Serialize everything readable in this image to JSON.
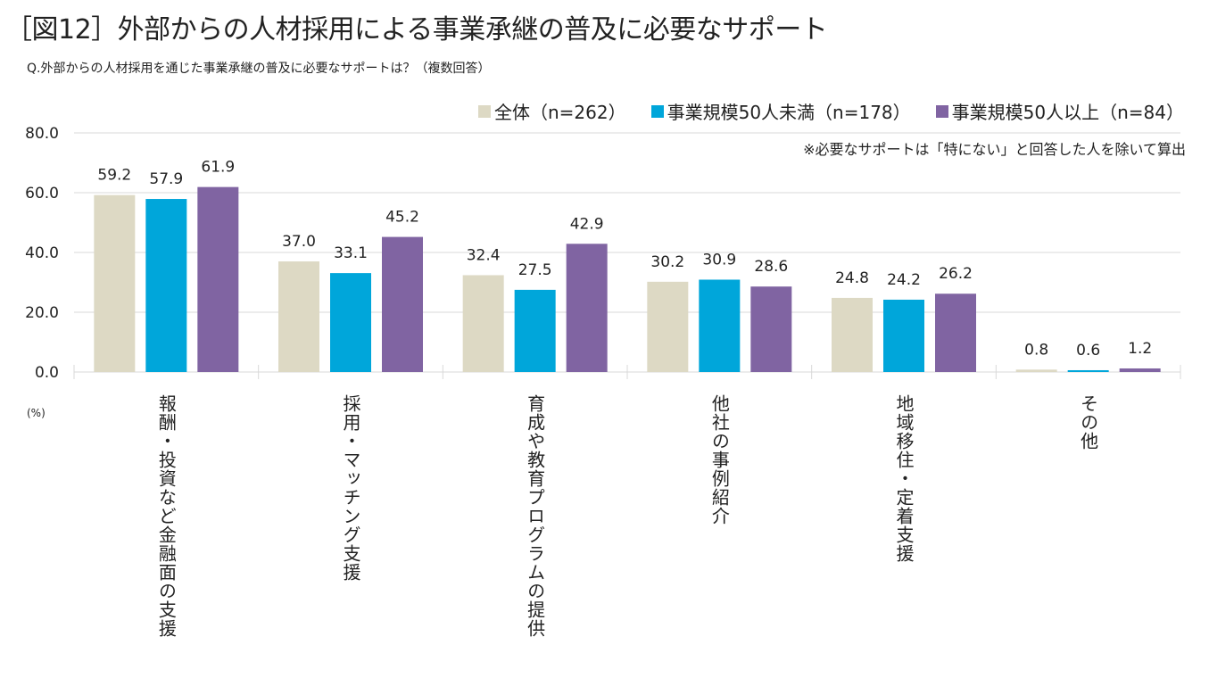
{
  "title": "［図12］外部からの人材採用による事業承継の普及に必要なサポート",
  "subtitle": "Q.外部からの人材採用を通じた事業承継の普及に必要なサポートは？（複数回答）",
  "note": "※必要なサポートは「特にない」と回答した人を除いて算出",
  "unit_label": "(%)",
  "chart_data": {
    "type": "bar",
    "title": "［図12］外部からの人材採用による事業承継の普及に必要なサポート",
    "xlabel": "",
    "ylabel": "(%)",
    "ylim": [
      0,
      80
    ],
    "yticks": [
      "0.0",
      "20.0",
      "40.0",
      "60.0",
      "80.0"
    ],
    "ytick_values": [
      0,
      20,
      40,
      60,
      80
    ],
    "grid": true,
    "legend_position": "top-right",
    "categories": [
      "報酬・投資など金融面の支援",
      "採用・マッチング支援",
      "育成や教育プログラムの提供",
      "他社の事例紹介",
      "地域移住・定着支援",
      "その他"
    ],
    "series": [
      {
        "name": "全体（n=262）",
        "color": "#ddd9c4",
        "values": [
          59.2,
          37.0,
          32.4,
          30.2,
          24.8,
          0.8
        ]
      },
      {
        "name": "事業規模50人未満（n=178）",
        "color": "#00a6da",
        "values": [
          57.9,
          33.1,
          27.5,
          30.9,
          24.2,
          0.6
        ]
      },
      {
        "name": "事業規模50人以上（n=84）",
        "color": "#8064a2",
        "values": [
          61.9,
          45.2,
          42.9,
          28.6,
          26.2,
          1.2
        ]
      }
    ]
  }
}
